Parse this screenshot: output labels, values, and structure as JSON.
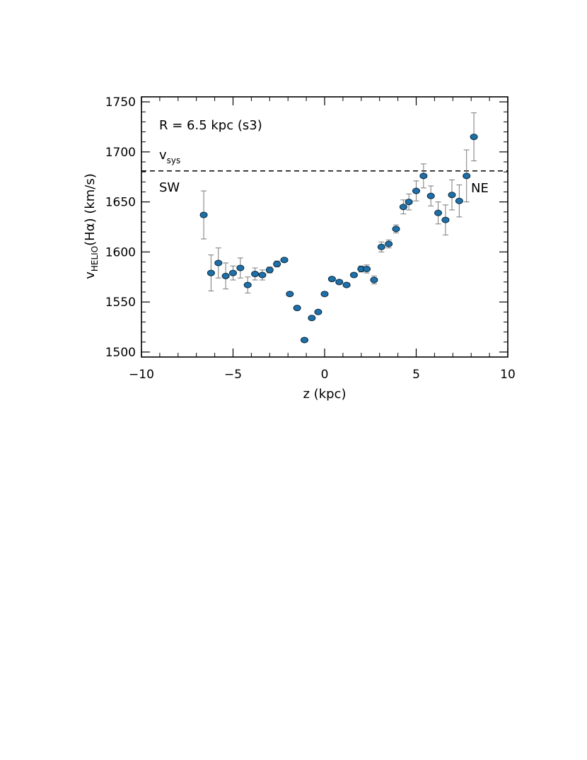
{
  "chart_data": {
    "type": "scatter",
    "title": "",
    "annotation": "R = 6.5 kpc (s3)",
    "xlabel": "z (kpc)",
    "ylabel": {
      "base": "v",
      "subscript": "HELIO",
      "rest": "(Hα) (km/s)"
    },
    "xlim": [
      -10,
      10
    ],
    "ylim": [
      1495,
      1755
    ],
    "xticks": [
      -10,
      -5,
      0,
      5,
      10
    ],
    "xtick_labels": [
      "−10",
      "−5",
      "0",
      "5",
      "10"
    ],
    "yticks": [
      1500,
      1550,
      1600,
      1650,
      1700,
      1750
    ],
    "ytick_labels": [
      "1500",
      "1550",
      "1600",
      "1650",
      "1700",
      "1750"
    ],
    "reference_line": {
      "y": 1681,
      "style": "dashed",
      "label_base": "v",
      "label_subscript": "sys"
    },
    "side_labels": {
      "left": "SW",
      "right": "NE"
    },
    "marker_color": "#1f6fa8",
    "errorbar_color": "#7a7a7a",
    "points": [
      {
        "x": -6.6,
        "y": 1637,
        "err": 24
      },
      {
        "x": -6.2,
        "y": 1579,
        "err": 18
      },
      {
        "x": -5.8,
        "y": 1589,
        "err": 15
      },
      {
        "x": -5.4,
        "y": 1576,
        "err": 13
      },
      {
        "x": -5.0,
        "y": 1579,
        "err": 7
      },
      {
        "x": -4.6,
        "y": 1584,
        "err": 10
      },
      {
        "x": -4.2,
        "y": 1567,
        "err": 8
      },
      {
        "x": -3.8,
        "y": 1578,
        "err": 6
      },
      {
        "x": -3.4,
        "y": 1577,
        "err": 5
      },
      {
        "x": -3.0,
        "y": 1582,
        "err": 3
      },
      {
        "x": -2.6,
        "y": 1588,
        "err": 3
      },
      {
        "x": -2.2,
        "y": 1592,
        "err": 2
      },
      {
        "x": -1.9,
        "y": 1558,
        "err": 2
      },
      {
        "x": -1.5,
        "y": 1544,
        "err": 2
      },
      {
        "x": -1.1,
        "y": 1512,
        "err": 2
      },
      {
        "x": -0.7,
        "y": 1534,
        "err": 2
      },
      {
        "x": -0.35,
        "y": 1540,
        "err": 2
      },
      {
        "x": 0.0,
        "y": 1558,
        "err": 2
      },
      {
        "x": 0.4,
        "y": 1573,
        "err": 2
      },
      {
        "x": 0.8,
        "y": 1570,
        "err": 2
      },
      {
        "x": 1.2,
        "y": 1567,
        "err": 2
      },
      {
        "x": 1.6,
        "y": 1577,
        "err": 2
      },
      {
        "x": 2.0,
        "y": 1583,
        "err": 3
      },
      {
        "x": 2.3,
        "y": 1583,
        "err": 4
      },
      {
        "x": 2.7,
        "y": 1572,
        "err": 4
      },
      {
        "x": 3.1,
        "y": 1605,
        "err": 5
      },
      {
        "x": 3.5,
        "y": 1608,
        "err": 4
      },
      {
        "x": 3.9,
        "y": 1623,
        "err": 4
      },
      {
        "x": 4.3,
        "y": 1645,
        "err": 7
      },
      {
        "x": 4.6,
        "y": 1650,
        "err": 8
      },
      {
        "x": 5.0,
        "y": 1661,
        "err": 10
      },
      {
        "x": 5.4,
        "y": 1676,
        "err": 12
      },
      {
        "x": 5.8,
        "y": 1656,
        "err": 10
      },
      {
        "x": 6.2,
        "y": 1639,
        "err": 11
      },
      {
        "x": 6.6,
        "y": 1632,
        "err": 15
      },
      {
        "x": 6.95,
        "y": 1657,
        "err": 15
      },
      {
        "x": 7.35,
        "y": 1651,
        "err": 16
      },
      {
        "x": 7.75,
        "y": 1676,
        "err": 26
      },
      {
        "x": 8.15,
        "y": 1715,
        "err": 24
      }
    ]
  }
}
